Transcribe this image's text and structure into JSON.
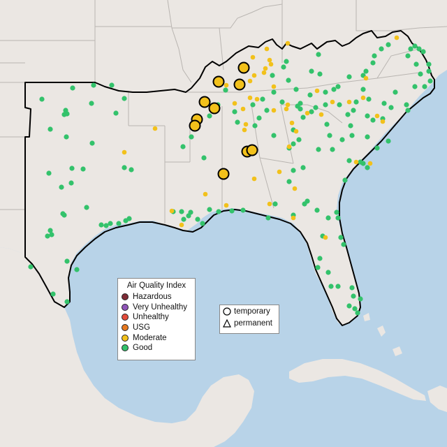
{
  "legend": {
    "title": "Air Quality Index",
    "categories": [
      {
        "label": "Hazardous",
        "color": "#7e2b36"
      },
      {
        "label": "Very Unhealthy",
        "color": "#8f55b8"
      },
      {
        "label": "Unhealthy",
        "color": "#e34b3a"
      },
      {
        "label": "USG",
        "color": "#e6791f"
      },
      {
        "label": "Moderate",
        "color": "#f2c11b"
      },
      {
        "label": "Good",
        "color": "#33c26b"
      }
    ]
  },
  "monitor_type_legend": {
    "items": [
      {
        "label": "temporary",
        "icon": "circle-outline-icon"
      },
      {
        "label": "permanent",
        "icon": "triangle-outline-icon"
      }
    ]
  },
  "colors": {
    "water": "#b8d3e8",
    "land": "#ebe7e3",
    "region_outline": "#000000",
    "state_border": "#b9b5b1"
  }
}
